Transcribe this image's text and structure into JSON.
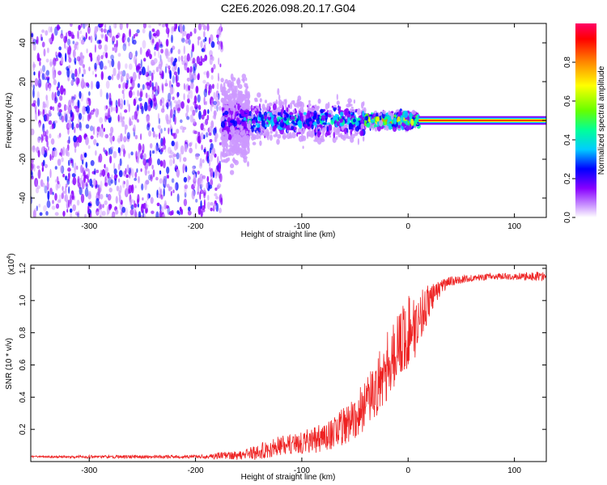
{
  "title": "C2E6.2026.098.20.17.G04",
  "colors": {
    "snr_line": "#ee2222",
    "scatter_low": "#cdb8ff",
    "scatter_mid": "#7a1ef0",
    "scatter_high": "#00d4d4",
    "ridge_line": "#ff0000"
  },
  "chart_data": [
    {
      "type": "heatmap",
      "title": "",
      "xlabel": "Height of straight line (km)",
      "ylabel": "Frequency (Hz)",
      "xlim": [
        -355,
        130
      ],
      "ylim": [
        -50,
        50
      ],
      "xticks": [
        -300,
        -200,
        -100,
        0,
        100
      ],
      "xtick_labels": [
        "-300",
        "-200",
        "-100",
        "0",
        "100"
      ],
      "yticks": [
        -40,
        -20,
        0,
        20,
        40
      ],
      "ytick_labels": [
        "-40",
        "-20",
        "0",
        "20",
        "40"
      ],
      "colorbar": {
        "label": "Normalized spectral amplitude",
        "range": [
          0,
          1
        ],
        "ticks": [
          0.0,
          0.2,
          0.4,
          0.6,
          0.8
        ],
        "tick_labels": [
          "0.0",
          "0.2",
          "0.4",
          "0.6",
          "0.8"
        ],
        "colormap": [
          "#ffffff",
          "#cc99ff",
          "#8800ff",
          "#0000ff",
          "#00ccff",
          "#00ff99",
          "#66ff00",
          "#ffff00",
          "#ff8800",
          "#ff0000",
          "#ff0066"
        ]
      },
      "regions": [
        {
          "x_range": [
            -355,
            -175
          ],
          "freq_spread_hz": 50,
          "amplitude": 0.2,
          "description_level": "noise"
        },
        {
          "x_range": [
            -175,
            -150
          ],
          "freq_spread_hz": 15,
          "amplitude": 0.3
        },
        {
          "x_range": [
            -150,
            -40
          ],
          "freq_spread_hz": 8,
          "amplitude": 0.45
        },
        {
          "x_range": [
            -40,
            10
          ],
          "freq_spread_hz": 3,
          "amplitude": 0.7
        },
        {
          "x_range": [
            10,
            130
          ],
          "freq_spread_hz": 1,
          "amplitude": 1.0
        }
      ],
      "ridge": {
        "x_start": 10,
        "x_end": 130,
        "frequency_hz": 0
      }
    },
    {
      "type": "line",
      "title": "",
      "xlabel": "Height of straight line (km)",
      "ylabel": "SNR (10 * v/v)",
      "y_multiplier_label": "(x10",
      "y_multiplier_exp": "4",
      "y_multiplier_close": ")",
      "xlim": [
        -355,
        130
      ],
      "ylim": [
        0,
        1.22
      ],
      "xticks": [
        -300,
        -200,
        -100,
        0,
        100
      ],
      "xtick_labels": [
        "-300",
        "-200",
        "-100",
        "0",
        "100"
      ],
      "yticks": [
        0.2,
        0.4,
        0.6,
        0.8,
        1.0,
        1.2
      ],
      "ytick_labels": [
        "0.2",
        "0.4",
        "0.6",
        "0.8",
        "1.0",
        "1.2"
      ],
      "series": [
        {
          "name": "SNR",
          "x": [
            -355,
            -300,
            -250,
            -200,
            -180,
            -160,
            -150,
            -140,
            -130,
            -120,
            -110,
            -100,
            -90,
            -80,
            -70,
            -60,
            -50,
            -40,
            -30,
            -20,
            -10,
            0,
            10,
            20,
            30,
            40,
            60,
            80,
            100,
            120,
            130
          ],
          "y": [
            0.03,
            0.03,
            0.03,
            0.03,
            0.035,
            0.04,
            0.05,
            0.06,
            0.08,
            0.1,
            0.11,
            0.12,
            0.13,
            0.15,
            0.18,
            0.22,
            0.28,
            0.35,
            0.45,
            0.6,
            0.7,
            0.8,
            0.88,
            1.0,
            1.08,
            1.12,
            1.14,
            1.15,
            1.15,
            1.15,
            1.15
          ],
          "noise": [
            0.005,
            0.01,
            0.01,
            0.01,
            0.02,
            0.03,
            0.04,
            0.05,
            0.06,
            0.06,
            0.06,
            0.07,
            0.08,
            0.09,
            0.1,
            0.12,
            0.14,
            0.16,
            0.18,
            0.22,
            0.24,
            0.24,
            0.2,
            0.1,
            0.05,
            0.03,
            0.02,
            0.02,
            0.02,
            0.03,
            0.03
          ]
        }
      ]
    }
  ]
}
